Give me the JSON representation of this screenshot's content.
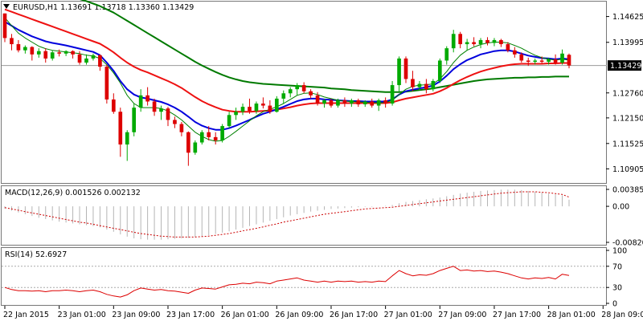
{
  "header": {
    "symbol_line": "EURUSD,H1  1.13691 1.13718 1.13360 1.13429"
  },
  "main_panel": {
    "price_ticks": [
      "1.14625",
      "1.13995",
      "1.13429",
      "1.12760",
      "1.12150",
      "1.11525",
      "1.10905"
    ],
    "current_price_label": "1.13429"
  },
  "macd_panel": {
    "title": "MACD(12,26,9) 0.001526 0.002132",
    "ticks": [
      "0.003855",
      "0.00",
      "-0.008207"
    ]
  },
  "rsi_panel": {
    "title": "RSI(14) 52.6927",
    "ticks": [
      "100",
      "70",
      "30",
      "0"
    ]
  },
  "time_axis": {
    "labels": [
      "22 Jan 2015",
      "23 Jan 01:00",
      "23 Jan 09:00",
      "23 Jan 17:00",
      "26 Jan 01:00",
      "26 Jan 09:00",
      "26 Jan 17:00",
      "27 Jan 01:00",
      "27 Jan 09:00",
      "27 Jan 17:00",
      "28 Jan 01:00",
      "28 Jan 09:00"
    ]
  },
  "colors": {
    "bull": "#00aa00",
    "bear": "#dd0000",
    "sma_fast": "#008000",
    "ema_blue": "#0000dd",
    "ema_red": "#ee1111",
    "sma_slow": "#007a00",
    "macd_hist": "#b5b5b5",
    "macd_signal": "#cc0000",
    "rsi": "#dd0000",
    "panel_border": "#777777"
  },
  "chart_data": [
    {
      "type": "candlestick",
      "title": "EURUSD,H1",
      "ylim": [
        1.106,
        1.1495
      ],
      "ohlc": [
        [
          1.147,
          1.147,
          1.14,
          1.141
        ],
        [
          1.141,
          1.142,
          1.138,
          1.1395
        ],
        [
          1.1395,
          1.1405,
          1.1375,
          1.138
        ],
        [
          1.138,
          1.1392,
          1.1372,
          1.1388
        ],
        [
          1.1388,
          1.139,
          1.1355,
          1.137
        ],
        [
          1.137,
          1.1385,
          1.1362,
          1.1378
        ],
        [
          1.1378,
          1.1385,
          1.135,
          1.136
        ],
        [
          1.136,
          1.138,
          1.1355,
          1.1375
        ],
        [
          1.1375,
          1.1382,
          1.1365,
          1.1372
        ],
        [
          1.1372,
          1.138,
          1.1366,
          1.1378
        ],
        [
          1.1378,
          1.138,
          1.136,
          1.137
        ],
        [
          1.137,
          1.1378,
          1.1345,
          1.135
        ],
        [
          1.135,
          1.137,
          1.1345,
          1.136
        ],
        [
          1.136,
          1.1372,
          1.1355,
          1.1368
        ],
        [
          1.1368,
          1.137,
          1.133,
          1.134
        ],
        [
          1.134,
          1.1345,
          1.125,
          1.126
        ],
        [
          1.126,
          1.1275,
          1.1225,
          1.123
        ],
        [
          1.123,
          1.124,
          1.112,
          1.115
        ],
        [
          1.115,
          1.1185,
          1.111,
          1.118
        ],
        [
          1.118,
          1.125,
          1.117,
          1.124
        ],
        [
          1.124,
          1.1285,
          1.123,
          1.127
        ],
        [
          1.127,
          1.129,
          1.1245,
          1.1255
        ],
        [
          1.1255,
          1.1262,
          1.122,
          1.123
        ],
        [
          1.123,
          1.1245,
          1.121,
          1.1238
        ],
        [
          1.1238,
          1.1242,
          1.1195,
          1.121
        ],
        [
          1.121,
          1.1218,
          1.119,
          1.12
        ],
        [
          1.12,
          1.1205,
          1.117,
          1.118
        ],
        [
          1.118,
          1.1182,
          1.1098,
          1.113
        ],
        [
          1.113,
          1.116,
          1.1125,
          1.1155
        ],
        [
          1.1155,
          1.1185,
          1.115,
          1.118
        ],
        [
          1.118,
          1.1195,
          1.116,
          1.1168
        ],
        [
          1.1168,
          1.118,
          1.115,
          1.116
        ],
        [
          1.116,
          1.12,
          1.1155,
          1.1195
        ],
        [
          1.1195,
          1.123,
          1.119,
          1.1222
        ],
        [
          1.1222,
          1.124,
          1.121,
          1.123
        ],
        [
          1.123,
          1.125,
          1.1222,
          1.1242
        ],
        [
          1.1242,
          1.1262,
          1.1225,
          1.1232
        ],
        [
          1.1232,
          1.1255,
          1.1225,
          1.125
        ],
        [
          1.125,
          1.1265,
          1.1238,
          1.1245
        ],
        [
          1.1245,
          1.1258,
          1.1225,
          1.123
        ],
        [
          1.123,
          1.1268,
          1.1228,
          1.1262
        ],
        [
          1.1262,
          1.1282,
          1.125,
          1.1275
        ],
        [
          1.1275,
          1.129,
          1.1265,
          1.1285
        ],
        [
          1.1285,
          1.13,
          1.127,
          1.1295
        ],
        [
          1.1295,
          1.1302,
          1.1275,
          1.128
        ],
        [
          1.128,
          1.1285,
          1.1262,
          1.127
        ],
        [
          1.127,
          1.1278,
          1.1245,
          1.125
        ],
        [
          1.125,
          1.1262,
          1.124,
          1.1258
        ],
        [
          1.1258,
          1.1262,
          1.124,
          1.1245
        ],
        [
          1.1245,
          1.1262,
          1.124,
          1.1258
        ],
        [
          1.1258,
          1.1265,
          1.1242,
          1.125
        ],
        [
          1.125,
          1.1262,
          1.1242,
          1.1258
        ],
        [
          1.1258,
          1.1262,
          1.1242,
          1.1248
        ],
        [
          1.1248,
          1.1258,
          1.1242,
          1.1255
        ],
        [
          1.1255,
          1.1262,
          1.124,
          1.1245
        ],
        [
          1.1245,
          1.1262,
          1.1232,
          1.1258
        ],
        [
          1.1258,
          1.1265,
          1.124,
          1.125
        ],
        [
          1.125,
          1.1305,
          1.1245,
          1.1295
        ],
        [
          1.1295,
          1.1365,
          1.128,
          1.136
        ],
        [
          1.136,
          1.1365,
          1.13,
          1.131
        ],
        [
          1.131,
          1.133,
          1.128,
          1.129
        ],
        [
          1.129,
          1.1305,
          1.1282,
          1.1298
        ],
        [
          1.1298,
          1.131,
          1.1275,
          1.1285
        ],
        [
          1.1285,
          1.131,
          1.128,
          1.1305
        ],
        [
          1.1305,
          1.136,
          1.13,
          1.1355
        ],
        [
          1.1355,
          1.139,
          1.1345,
          1.1385
        ],
        [
          1.1385,
          1.143,
          1.1375,
          1.142
        ],
        [
          1.142,
          1.1425,
          1.1385,
          1.1395
        ],
        [
          1.1395,
          1.1408,
          1.138,
          1.14
        ],
        [
          1.14,
          1.1412,
          1.139,
          1.1395
        ],
        [
          1.1395,
          1.141,
          1.1385,
          1.1405
        ],
        [
          1.1405,
          1.1412,
          1.1392,
          1.1398
        ],
        [
          1.1398,
          1.141,
          1.139,
          1.1405
        ],
        [
          1.1405,
          1.1408,
          1.1388,
          1.1395
        ],
        [
          1.1395,
          1.14,
          1.1375,
          1.138
        ],
        [
          1.138,
          1.1388,
          1.1362,
          1.137
        ],
        [
          1.137,
          1.1375,
          1.135,
          1.1355
        ],
        [
          1.1355,
          1.1362,
          1.1342,
          1.1352
        ],
        [
          1.1352,
          1.136,
          1.1345,
          1.1355
        ],
        [
          1.1355,
          1.1365,
          1.1348,
          1.1352
        ],
        [
          1.1352,
          1.1362,
          1.1345,
          1.1358
        ],
        [
          1.1358,
          1.137,
          1.1345,
          1.135
        ],
        [
          1.135,
          1.1382,
          1.1345,
          1.1372
        ],
        [
          1.1369,
          1.1372,
          1.1336,
          1.1343
        ]
      ],
      "sma_fast": [
        1.146,
        1.144,
        1.1422,
        1.141,
        1.14,
        1.139,
        1.1384,
        1.138,
        1.1378,
        1.1376,
        1.1374,
        1.1372,
        1.1368,
        1.1366,
        1.136,
        1.1345,
        1.1325,
        1.13,
        1.127,
        1.125,
        1.124,
        1.124,
        1.124,
        1.1238,
        1.1232,
        1.1222,
        1.121,
        1.1195,
        1.118,
        1.117,
        1.1162,
        1.1158,
        1.116,
        1.117,
        1.1182,
        1.1195,
        1.1208,
        1.122,
        1.123,
        1.1236,
        1.1242,
        1.125,
        1.126,
        1.127,
        1.1275,
        1.1276,
        1.1272,
        1.1266,
        1.1262,
        1.1258,
        1.1256,
        1.1255,
        1.1254,
        1.1253,
        1.1252,
        1.1252,
        1.1252,
        1.1258,
        1.1272,
        1.1285,
        1.1292,
        1.1295,
        1.1296,
        1.1298,
        1.131,
        1.1328,
        1.135,
        1.1368,
        1.138,
        1.1388,
        1.1394,
        1.1398,
        1.14,
        1.14,
        1.1398,
        1.1392,
        1.1385,
        1.1376,
        1.1368,
        1.1362,
        1.1358,
        1.1356,
        1.1358,
        1.1356
      ],
      "ema_blue": [
        1.145,
        1.144,
        1.143,
        1.1422,
        1.1414,
        1.1408,
        1.1402,
        1.1398,
        1.1395,
        1.1392,
        1.1388,
        1.1384,
        1.138,
        1.1376,
        1.1368,
        1.135,
        1.133,
        1.1305,
        1.1285,
        1.1272,
        1.1265,
        1.1262,
        1.1258,
        1.1254,
        1.1248,
        1.124,
        1.123,
        1.1218,
        1.1205,
        1.1196,
        1.119,
        1.1186,
        1.1186,
        1.119,
        1.1196,
        1.1203,
        1.121,
        1.1218,
        1.1225,
        1.123,
        1.1236,
        1.1242,
        1.1249,
        1.1256,
        1.126,
        1.1262,
        1.1262,
        1.126,
        1.1259,
        1.1258,
        1.1257,
        1.1256,
        1.1256,
        1.1255,
        1.1255,
        1.1255,
        1.1255,
        1.126,
        1.1272,
        1.128,
        1.1284,
        1.1287,
        1.129,
        1.1294,
        1.1304,
        1.1318,
        1.1334,
        1.1346,
        1.1356,
        1.1363,
        1.137,
        1.1374,
        1.1378,
        1.138,
        1.138,
        1.1377,
        1.1372,
        1.1367,
        1.1364,
        1.1361,
        1.136,
        1.1358,
        1.136,
        1.1358
      ],
      "ema_red": [
        1.148,
        1.1474,
        1.1468,
        1.1462,
        1.1456,
        1.145,
        1.1444,
        1.1438,
        1.1432,
        1.1426,
        1.142,
        1.1414,
        1.1408,
        1.1402,
        1.1396,
        1.1386,
        1.1375,
        1.1362,
        1.135,
        1.134,
        1.1332,
        1.1326,
        1.1319,
        1.1312,
        1.1305,
        1.1297,
        1.1288,
        1.1277,
        1.1266,
        1.1256,
        1.1248,
        1.1241,
        1.1235,
        1.1232,
        1.123,
        1.123,
        1.123,
        1.1231,
        1.1232,
        1.1233,
        1.1235,
        1.1238,
        1.1241,
        1.1245,
        1.1248,
        1.125,
        1.1251,
        1.1251,
        1.1251,
        1.1251,
        1.1251,
        1.1251,
        1.1251,
        1.1251,
        1.1251,
        1.1251,
        1.1251,
        1.1253,
        1.1258,
        1.1262,
        1.1265,
        1.1268,
        1.1271,
        1.1274,
        1.128,
        1.1288,
        1.1298,
        1.1307,
        1.1315,
        1.1322,
        1.1328,
        1.1333,
        1.1337,
        1.1341,
        1.1344,
        1.1346,
        1.1347,
        1.1347,
        1.1347,
        1.1347,
        1.1348,
        1.1348,
        1.1349,
        1.1349
      ],
      "sma_slow": [
        1.156,
        1.1555,
        1.155,
        1.1545,
        1.154,
        1.1535,
        1.153,
        1.1525,
        1.152,
        1.1515,
        1.151,
        1.1505,
        1.15,
        1.1494,
        1.1488,
        1.148,
        1.1472,
        1.1462,
        1.1452,
        1.1442,
        1.1432,
        1.1422,
        1.1412,
        1.1402,
        1.1392,
        1.1382,
        1.1372,
        1.1362,
        1.1352,
        1.1343,
        1.1335,
        1.1327,
        1.132,
        1.1314,
        1.1309,
        1.1305,
        1.1302,
        1.13,
        1.1298,
        1.1297,
        1.1296,
        1.1295,
        1.1294,
        1.1293,
        1.1292,
        1.1291,
        1.129,
        1.1289,
        1.1287,
        1.1286,
        1.1285,
        1.1283,
        1.1282,
        1.1281,
        1.128,
        1.1279,
        1.1278,
        1.1278,
        1.1278,
        1.1279,
        1.1281,
        1.1283,
        1.1285,
        1.1287,
        1.129,
        1.1293,
        1.1296,
        1.1299,
        1.1302,
        1.1305,
        1.1307,
        1.1309,
        1.131,
        1.1311,
        1.1312,
        1.1313,
        1.1313,
        1.1314,
        1.1314,
        1.1315,
        1.1315,
        1.1316,
        1.1316,
        1.1316
      ]
    },
    {
      "type": "histogram",
      "title": "MACD(12,26,9) 0.001526 0.002132",
      "ylim": [
        -0.008207,
        0.003855
      ],
      "histogram": [
        -0.0005,
        -0.001,
        -0.0014,
        -0.0018,
        -0.0022,
        -0.0026,
        -0.0029,
        -0.0032,
        -0.0035,
        -0.0037,
        -0.0039,
        -0.0041,
        -0.0043,
        -0.0045,
        -0.0048,
        -0.0053,
        -0.0058,
        -0.0064,
        -0.0069,
        -0.0073,
        -0.0075,
        -0.0076,
        -0.0076,
        -0.0076,
        -0.0075,
        -0.0074,
        -0.0073,
        -0.0072,
        -0.007,
        -0.0068,
        -0.0066,
        -0.0063,
        -0.006,
        -0.0057,
        -0.0053,
        -0.0049,
        -0.0045,
        -0.0041,
        -0.0037,
        -0.0033,
        -0.0029,
        -0.0025,
        -0.0021,
        -0.0018,
        -0.0015,
        -0.0012,
        -0.001,
        -0.0008,
        -0.0006,
        -0.0005,
        -0.0004,
        -0.0003,
        -0.0002,
        -0.0001,
        -0.0001,
        0.0,
        0.0001,
        0.0003,
        0.0007,
        0.001,
        0.0012,
        0.0014,
        0.0016,
        0.0018,
        0.002,
        0.0023,
        0.0026,
        0.0029,
        0.0031,
        0.0033,
        0.0035,
        0.0036,
        0.0037,
        0.0038,
        0.0038,
        0.0038,
        0.0037,
        0.0035,
        0.0033,
        0.0031,
        0.0029,
        0.0027,
        0.0025,
        0.0015
      ],
      "signal": [
        -0.0003,
        -0.0006,
        -0.0009,
        -0.0012,
        -0.0015,
        -0.0018,
        -0.0021,
        -0.0024,
        -0.0027,
        -0.003,
        -0.0033,
        -0.0036,
        -0.0038,
        -0.0041,
        -0.0044,
        -0.0047,
        -0.005,
        -0.0053,
        -0.0056,
        -0.0059,
        -0.0062,
        -0.0064,
        -0.0066,
        -0.0068,
        -0.0069,
        -0.007,
        -0.007,
        -0.007,
        -0.007,
        -0.0069,
        -0.0068,
        -0.0066,
        -0.0064,
        -0.0062,
        -0.0059,
        -0.0056,
        -0.0053,
        -0.005,
        -0.0047,
        -0.0043,
        -0.004,
        -0.0036,
        -0.0033,
        -0.003,
        -0.0027,
        -0.0024,
        -0.0021,
        -0.0018,
        -0.0016,
        -0.0014,
        -0.0012,
        -0.001,
        -0.0008,
        -0.0006,
        -0.0005,
        -0.0004,
        -0.0003,
        -0.0002,
        0.0,
        0.0002,
        0.0004,
        0.0006,
        0.0008,
        0.001,
        0.0012,
        0.0014,
        0.0016,
        0.0018,
        0.002,
        0.0022,
        0.0024,
        0.0026,
        0.0028,
        0.003,
        0.0031,
        0.0032,
        0.0033,
        0.0033,
        0.0033,
        0.0032,
        0.0031,
        0.0029,
        0.0027,
        0.0021
      ]
    },
    {
      "type": "line",
      "title": "RSI(14) 52.6927",
      "ylim": [
        0,
        100
      ],
      "reference_levels": [
        70,
        30
      ],
      "values": [
        30,
        26,
        24,
        24,
        23,
        24,
        22,
        24,
        24,
        25,
        24,
        22,
        24,
        25,
        22,
        17,
        14,
        12,
        16,
        24,
        29,
        27,
        25,
        26,
        24,
        23,
        21,
        19,
        25,
        29,
        28,
        27,
        31,
        35,
        36,
        38,
        37,
        40,
        39,
        37,
        42,
        44,
        46,
        48,
        44,
        42,
        40,
        42,
        40,
        42,
        41,
        42,
        40,
        41,
        40,
        42,
        41,
        52,
        62,
        56,
        52,
        54,
        53,
        56,
        62,
        66,
        70,
        62,
        63,
        61,
        62,
        60,
        61,
        59,
        56,
        52,
        48,
        46,
        48,
        47,
        49,
        46,
        55,
        52.6927
      ]
    }
  ]
}
